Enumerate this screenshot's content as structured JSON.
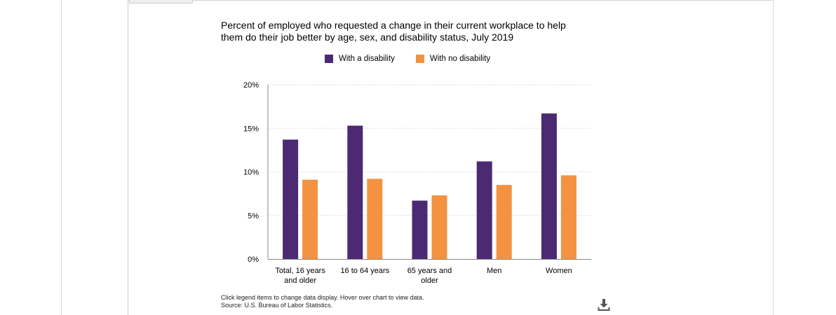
{
  "colors": {
    "with_disability": "#4b2a73",
    "no_disability": "#f39241"
  },
  "icons": {
    "download": "download-icon"
  },
  "footer": {
    "note": "Click legend items to change data display. Hover over chart to view data.",
    "source": "Source: U.S. Bureau of Labor Statistics."
  },
  "chart_data": {
    "type": "bar",
    "title": "Percent of employed who requested a change in their current workplace to help them do their job better by age, sex, and disability status, July 2019",
    "xlabel": "",
    "ylabel": "",
    "ylim": [
      0,
      20
    ],
    "yticks": [
      "0%",
      "5%",
      "10%",
      "15%",
      "20%"
    ],
    "ytick_values": [
      0,
      5,
      10,
      15,
      20
    ],
    "grid": true,
    "legend_position": "top-center",
    "categories": [
      [
        "Total, 16 years",
        "and older"
      ],
      [
        "16 to 64 years"
      ],
      [
        "65 years and",
        "older"
      ],
      [
        "Men"
      ],
      [
        "Women"
      ]
    ],
    "series": [
      {
        "name": "With a disability",
        "values": [
          13.7,
          15.3,
          6.7,
          11.2,
          16.7
        ]
      },
      {
        "name": "With no disability",
        "values": [
          9.1,
          9.2,
          7.3,
          8.5,
          9.6
        ]
      }
    ]
  }
}
